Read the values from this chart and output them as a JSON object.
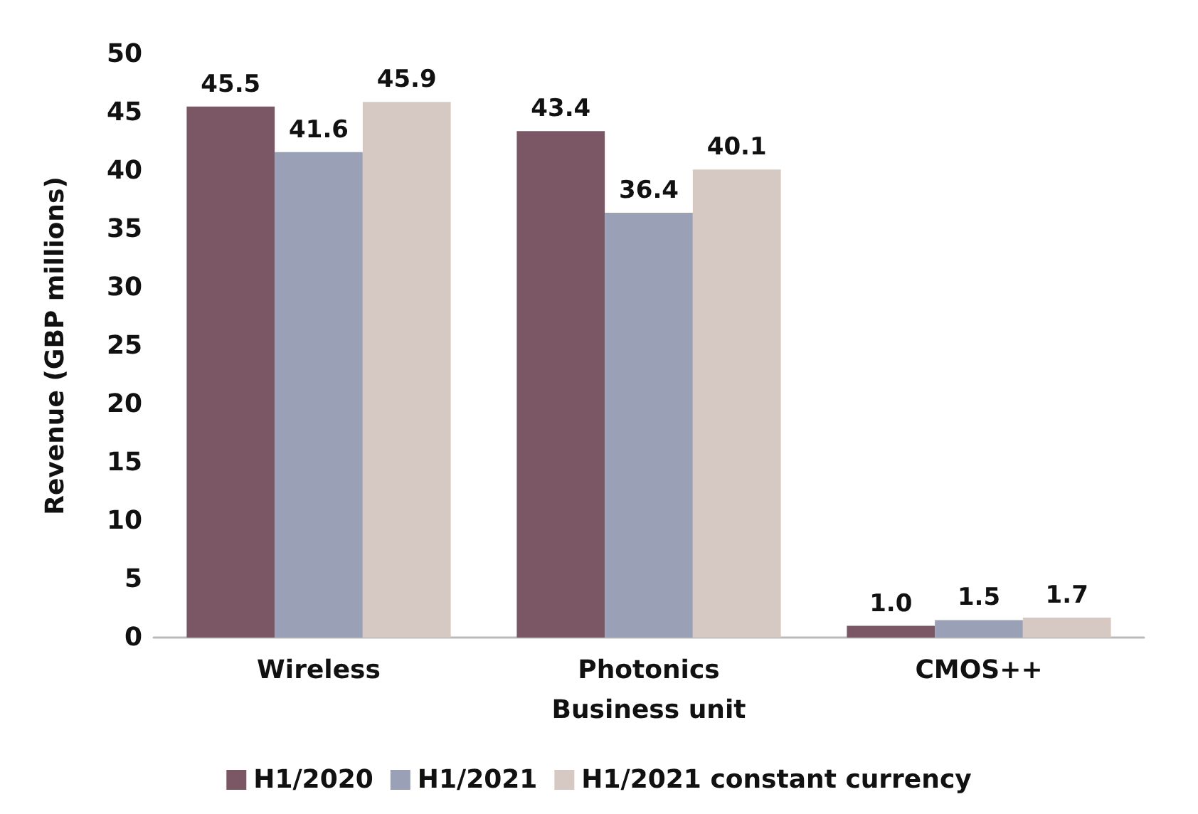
{
  "chart_data": {
    "type": "bar",
    "xlabel": "Business unit",
    "ylabel": "Revenue (GBP millions)",
    "categories": [
      "Wireless",
      "Photonics",
      "CMOS++"
    ],
    "series": [
      {
        "name": "H1/2020",
        "color": "#7b5766",
        "values": [
          45.5,
          43.4,
          1.0
        ],
        "value_labels": [
          "45.5",
          "43.4",
          "1.0"
        ]
      },
      {
        "name": "H1/2021",
        "color": "#9aa0b5",
        "values": [
          41.6,
          36.4,
          1.5
        ],
        "value_labels": [
          "41.6",
          "36.4",
          "1.5"
        ]
      },
      {
        "name": "H1/2021 constant currency",
        "color": "#d6c8c3",
        "values": [
          45.9,
          40.1,
          1.7
        ],
        "value_labels": [
          "45.9",
          "40.1",
          "1.7"
        ]
      }
    ],
    "ylim": [
      0,
      50
    ],
    "yticks": [
      0,
      5,
      10,
      15,
      20,
      25,
      30,
      35,
      40,
      45,
      50
    ],
    "grid": false,
    "legend": "bottom"
  }
}
